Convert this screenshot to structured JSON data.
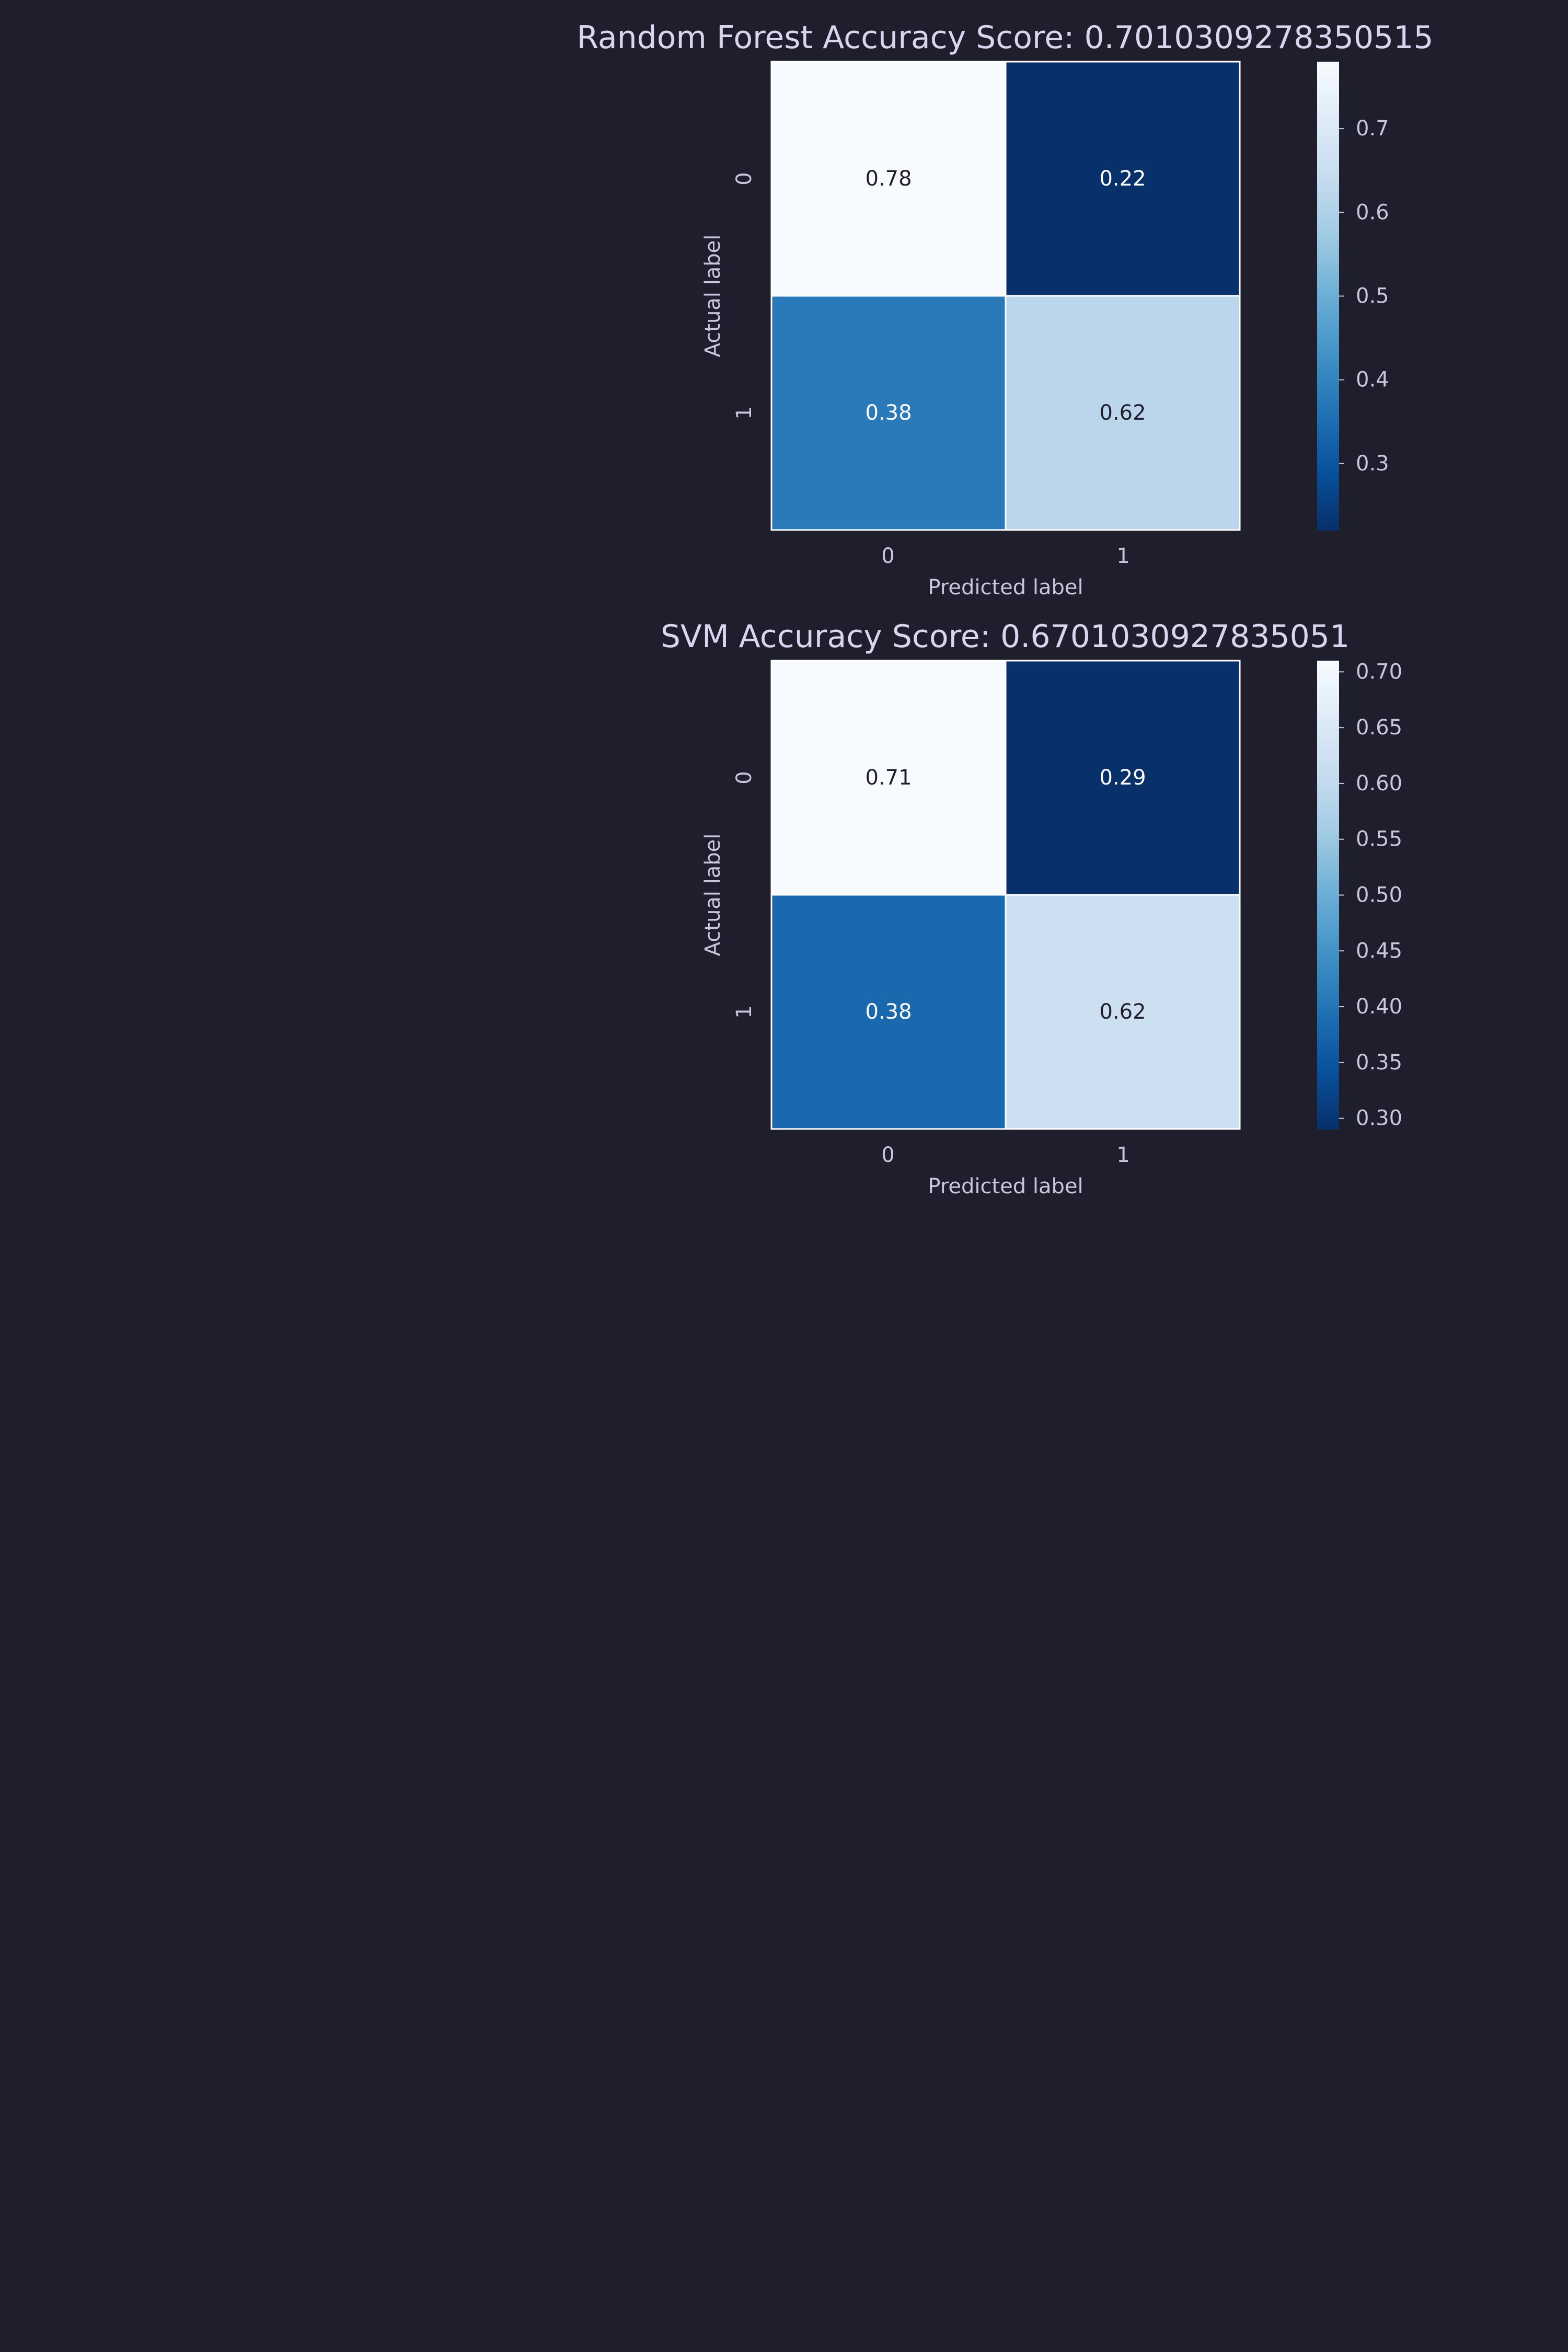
{
  "figure": {
    "background": "#1f1e2c"
  },
  "chart_data": [
    {
      "type": "heatmap",
      "title": "Random Forest Accuracy Score: 0.7010309278350515",
      "xlabel": "Predicted label",
      "ylabel": "Actual label",
      "x_categories": [
        "0",
        "1"
      ],
      "y_categories": [
        "0",
        "1"
      ],
      "values": [
        [
          0.78,
          0.22
        ],
        [
          0.38,
          0.62
        ]
      ],
      "cell_labels": [
        [
          "0.78",
          "0.22"
        ],
        [
          "0.38",
          "0.62"
        ]
      ],
      "colormap": "Blues_r",
      "colorbar": {
        "min": 0.22,
        "max": 0.78,
        "ticks": [
          "0.3",
          "0.4",
          "0.5",
          "0.6",
          "0.7"
        ]
      }
    },
    {
      "type": "heatmap",
      "title": "SVM Accuracy Score: 0.6701030927835051",
      "xlabel": "Predicted label",
      "ylabel": "Actual label",
      "x_categories": [
        "0",
        "1"
      ],
      "y_categories": [
        "0",
        "1"
      ],
      "values": [
        [
          0.71,
          0.29
        ],
        [
          0.38,
          0.62
        ]
      ],
      "cell_labels": [
        [
          "0.71",
          "0.29"
        ],
        [
          "0.38",
          "0.62"
        ]
      ],
      "colormap": "Blues_r",
      "colorbar": {
        "min": 0.29,
        "max": 0.71,
        "ticks": [
          "0.30",
          "0.35",
          "0.40",
          "0.45",
          "0.50",
          "0.55",
          "0.60",
          "0.65",
          "0.70"
        ]
      }
    }
  ]
}
